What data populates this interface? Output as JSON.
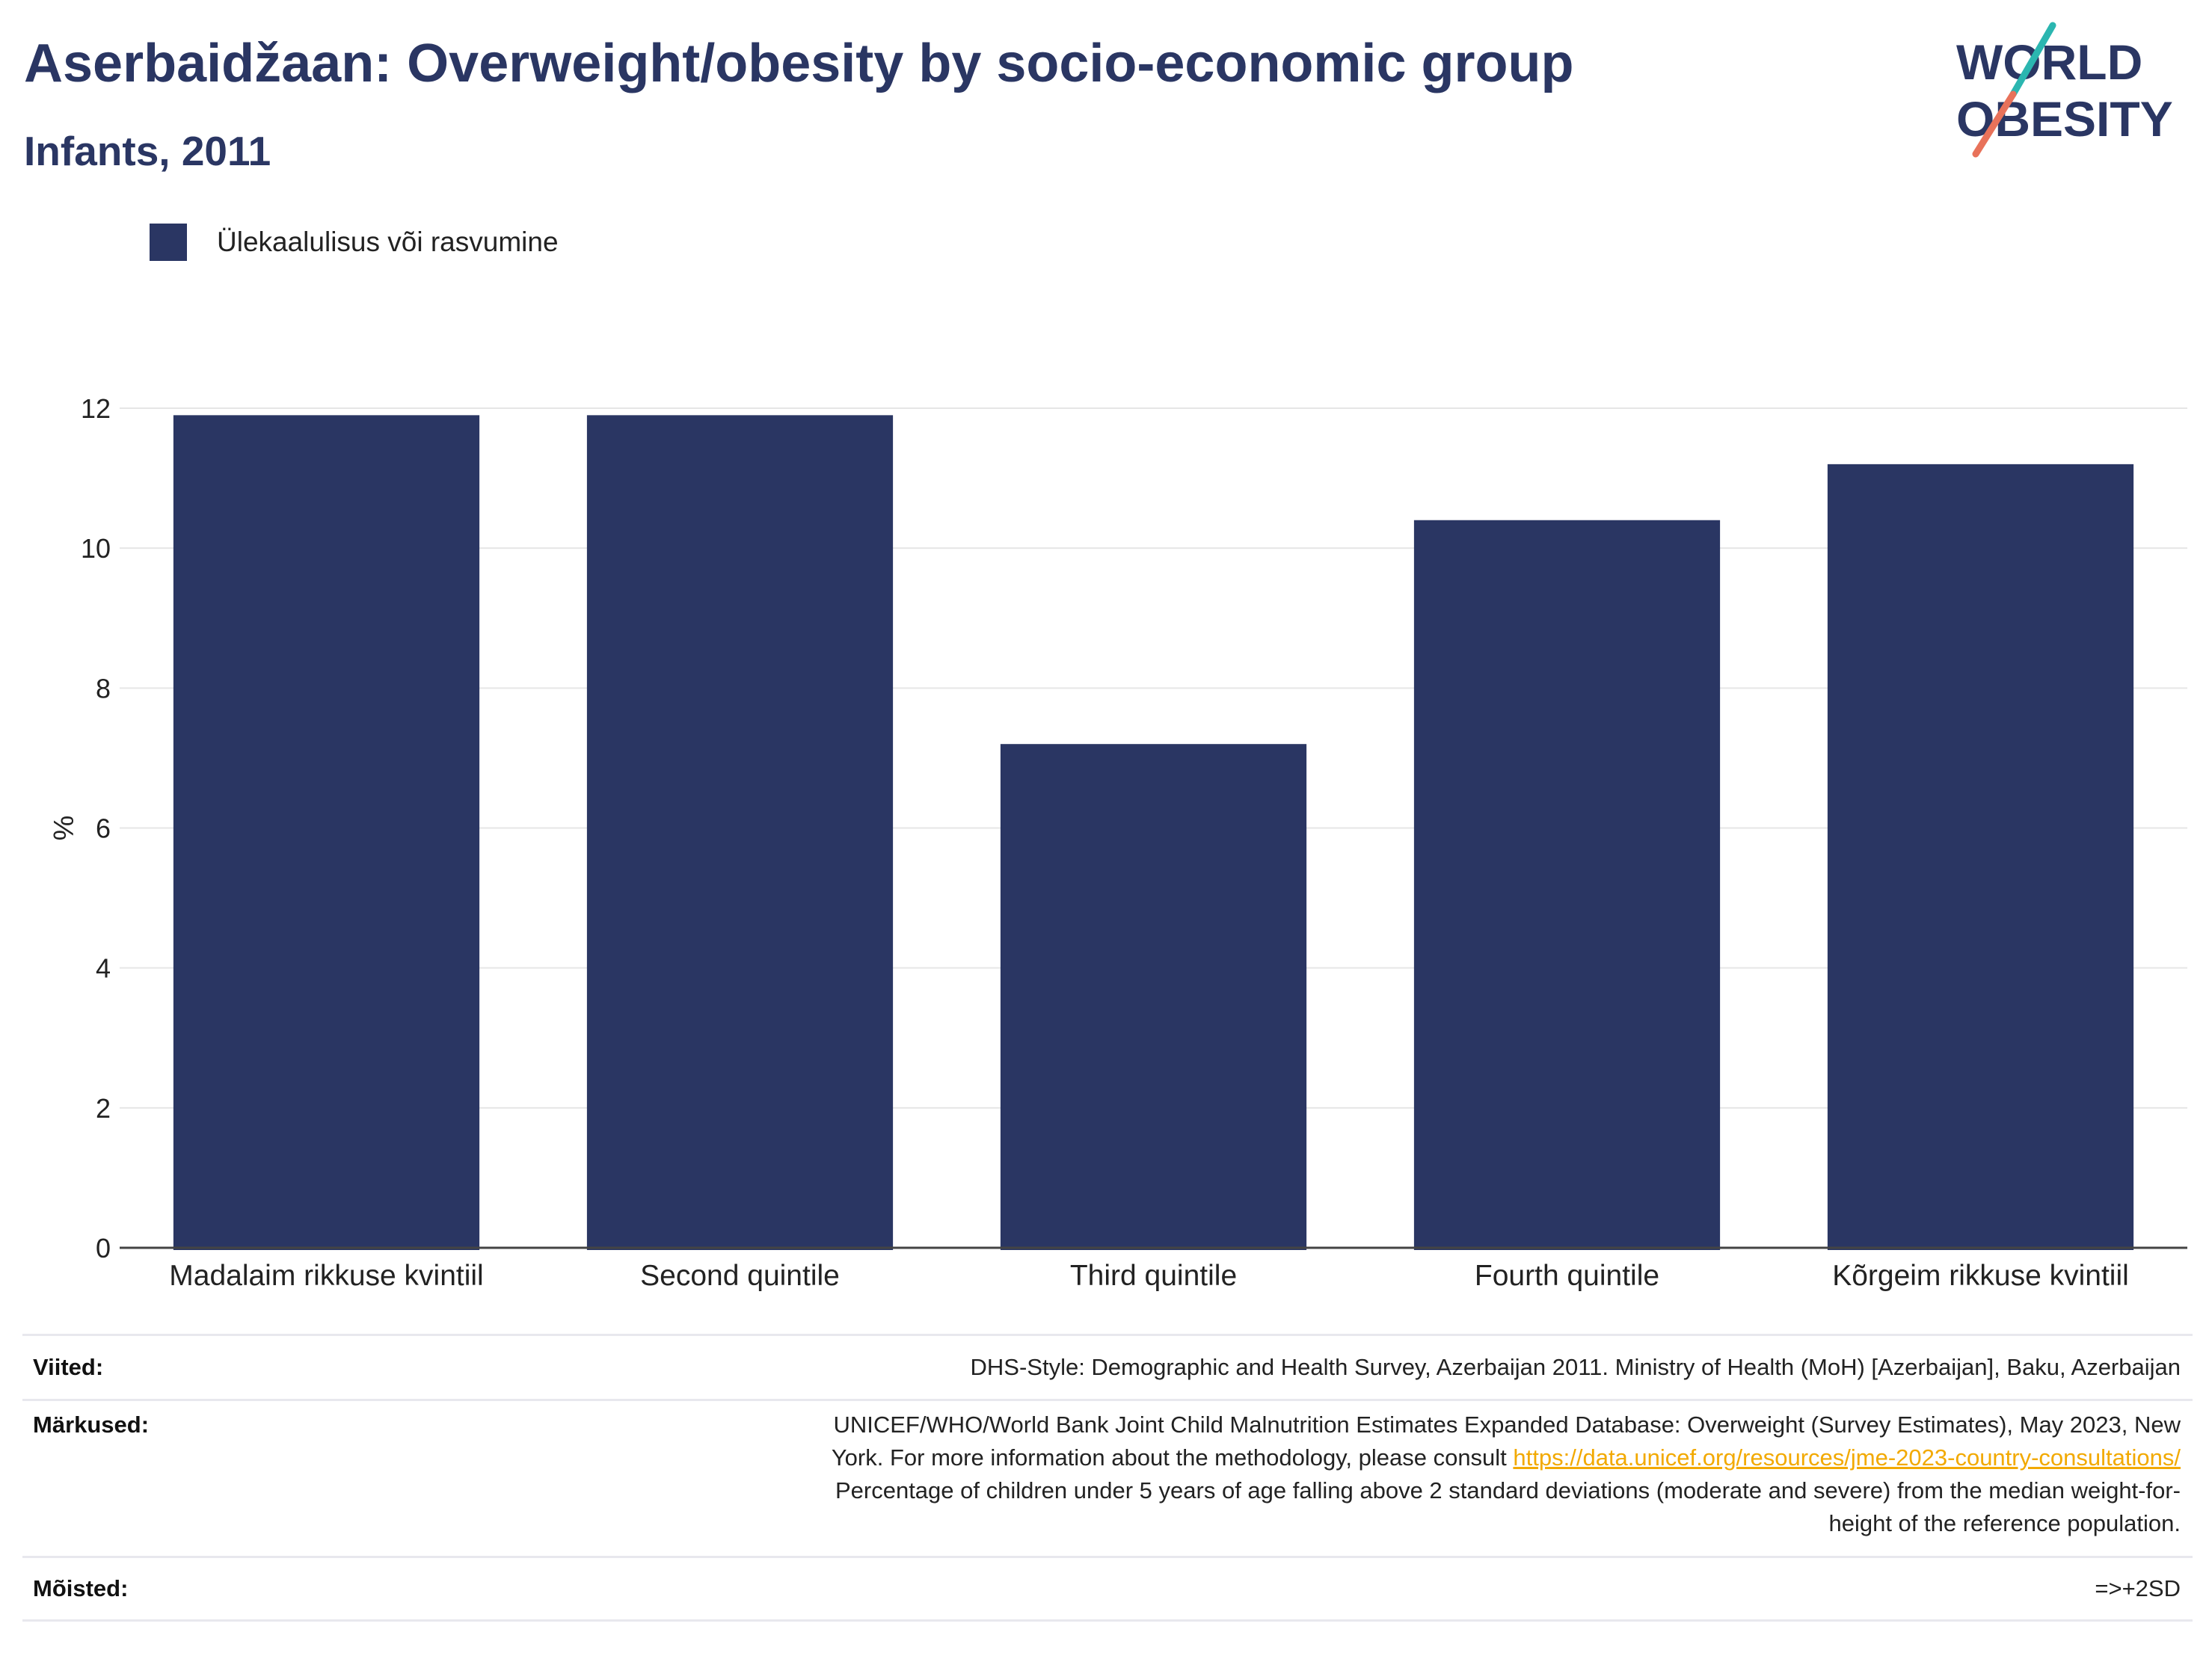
{
  "header": {
    "title": "Aserbaidžaan: Overweight/obesity by socio-economic group",
    "subtitle": "Infants, 2011"
  },
  "logo": {
    "line1": "WORLD",
    "line2": "OBESITY",
    "colors": {
      "text": "#2a3663",
      "slash_top": "#2bb6b0",
      "slash_bottom": "#e8725a"
    }
  },
  "legend": {
    "label": "Ülekaalulisus või rasvumine",
    "color": "#2a3663"
  },
  "chart_data": {
    "type": "bar",
    "categories": [
      "Madalaim rikkuse kvintiil",
      "Second quintile",
      "Third quintile",
      "Fourth quintile",
      "Kõrgeim rikkuse kvintiil"
    ],
    "series": [
      {
        "name": "Ülekaalulisus või rasvumine",
        "values": [
          11.9,
          11.9,
          7.2,
          10.4,
          11.2
        ],
        "color": "#2a3663"
      }
    ],
    "ylabel": "%",
    "ylim": [
      0,
      12
    ],
    "yticks": [
      0,
      2,
      4,
      6,
      8,
      10,
      12
    ],
    "grid": true,
    "legend_position": "top-left"
  },
  "footer": {
    "sources_label": "Viited:",
    "sources_text": "DHS-Style: Demographic and Health Survey, Azerbaijan 2011. Ministry of Health (MoH) [Azerbaijan], Baku, Azerbaijan",
    "notes_label": "Märkused:",
    "notes_line1": "UNICEF/WHO/World Bank Joint Child Malnutrition Estimates Expanded Database: Overweight (Survey Estimates), May 2023, New",
    "notes_line2_prefix": "York. For more information about the methodology, please consult ",
    "notes_link": "https://data.unicef.org/resources/jme-2023-country-consultations/",
    "notes_line3": "Percentage of children under 5 years of age falling above 2 standard deviations (moderate and severe) from the median weight-for-",
    "notes_line4": "height of the reference population.",
    "definitions_label": "Mõisted:",
    "definitions_text": "=>+2SD"
  }
}
